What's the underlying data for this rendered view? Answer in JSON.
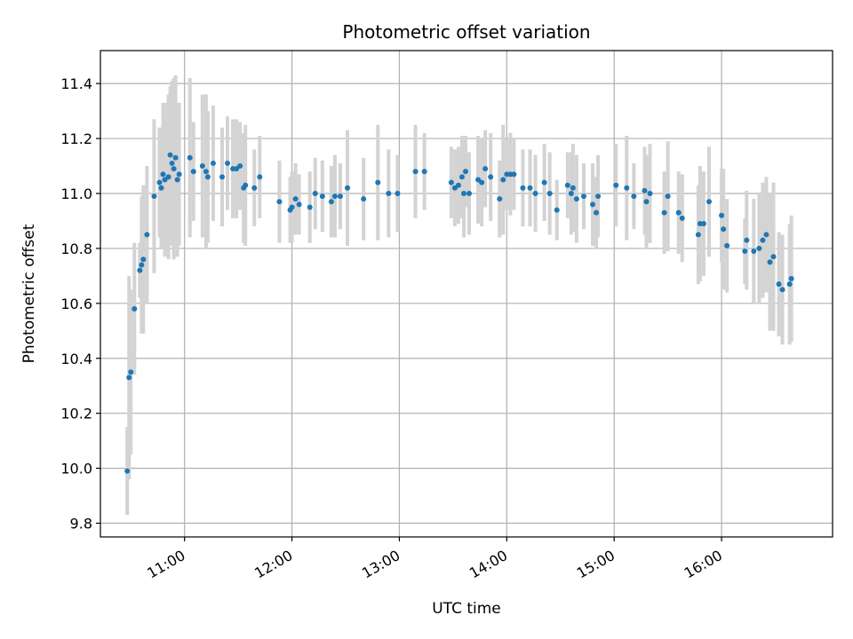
{
  "chart_data": {
    "type": "scatter",
    "title": "Photometric offset variation",
    "xlabel": "UTC time",
    "ylabel": "Photometric offset",
    "x_axis_kind": "time",
    "xlim": [
      "10:13",
      "17:02"
    ],
    "ylim": [
      9.75,
      11.52
    ],
    "x_ticks": [
      "11:00",
      "12:00",
      "13:00",
      "14:00",
      "15:00",
      "16:00"
    ],
    "y_ticks": [
      "9.8",
      "10.0",
      "10.2",
      "10.4",
      "10.6",
      "10.8",
      "11.0",
      "11.2",
      "11.4"
    ],
    "grid": true,
    "legend": "none",
    "colors": {
      "points": "#1f77b4",
      "error_bars": "#d3d3d3",
      "grid": "#b0b0b0"
    },
    "points": [
      {
        "x": "10:28",
        "y": 9.99,
        "err": 0.16
      },
      {
        "x": "10:29",
        "y": 10.33,
        "err": 0.37
      },
      {
        "x": "10:30",
        "y": 10.35,
        "err": 0.3
      },
      {
        "x": "10:32",
        "y": 10.58,
        "err": 0.24
      },
      {
        "x": "10:35",
        "y": 10.72,
        "err": 0.1
      },
      {
        "x": "10:36",
        "y": 10.74,
        "err": 0.25
      },
      {
        "x": "10:37",
        "y": 10.76,
        "err": 0.27
      },
      {
        "x": "10:39",
        "y": 10.85,
        "err": 0.25
      },
      {
        "x": "10:43",
        "y": 10.99,
        "err": 0.28
      },
      {
        "x": "10:46",
        "y": 11.04,
        "err": 0.2
      },
      {
        "x": "10:47",
        "y": 11.02,
        "err": 0.22
      },
      {
        "x": "10:48",
        "y": 11.07,
        "err": 0.26
      },
      {
        "x": "10:49",
        "y": 11.05,
        "err": 0.28
      },
      {
        "x": "10:51",
        "y": 11.06,
        "err": 0.3
      },
      {
        "x": "10:52",
        "y": 11.14,
        "err": 0.25
      },
      {
        "x": "10:53",
        "y": 11.11,
        "err": 0.3
      },
      {
        "x": "10:54",
        "y": 11.09,
        "err": 0.33
      },
      {
        "x": "10:55",
        "y": 11.13,
        "err": 0.3
      },
      {
        "x": "10:56",
        "y": 11.05,
        "err": 0.28
      },
      {
        "x": "10:57",
        "y": 11.07,
        "err": 0.26
      },
      {
        "x": "11:03",
        "y": 11.13,
        "err": 0.29
      },
      {
        "x": "11:05",
        "y": 11.08,
        "err": 0.18
      },
      {
        "x": "11:10",
        "y": 11.1,
        "err": 0.26
      },
      {
        "x": "11:12",
        "y": 11.08,
        "err": 0.28
      },
      {
        "x": "11:13",
        "y": 11.06,
        "err": 0.24
      },
      {
        "x": "11:16",
        "y": 11.11,
        "err": 0.21
      },
      {
        "x": "11:21",
        "y": 11.06,
        "err": 0.18
      },
      {
        "x": "11:24",
        "y": 11.11,
        "err": 0.17
      },
      {
        "x": "11:27",
        "y": 11.09,
        "err": 0.18
      },
      {
        "x": "11:29",
        "y": 11.09,
        "err": 0.18
      },
      {
        "x": "11:31",
        "y": 11.1,
        "err": 0.16
      },
      {
        "x": "11:33",
        "y": 11.02,
        "err": 0.2
      },
      {
        "x": "11:34",
        "y": 11.03,
        "err": 0.22
      },
      {
        "x": "11:39",
        "y": 11.02,
        "err": 0.14
      },
      {
        "x": "11:42",
        "y": 11.06,
        "err": 0.15
      },
      {
        "x": "11:53",
        "y": 10.97,
        "err": 0.15
      },
      {
        "x": "11:59",
        "y": 10.94,
        "err": 0.12
      },
      {
        "x": "12:00",
        "y": 10.95,
        "err": 0.13
      },
      {
        "x": "12:02",
        "y": 10.98,
        "err": 0.13
      },
      {
        "x": "12:04",
        "y": 10.96,
        "err": 0.11
      },
      {
        "x": "12:10",
        "y": 10.95,
        "err": 0.13
      },
      {
        "x": "12:13",
        "y": 11.0,
        "err": 0.13
      },
      {
        "x": "12:17",
        "y": 10.99,
        "err": 0.13
      },
      {
        "x": "12:22",
        "y": 10.97,
        "err": 0.13
      },
      {
        "x": "12:24",
        "y": 10.99,
        "err": 0.15
      },
      {
        "x": "12:27",
        "y": 10.99,
        "err": 0.12
      },
      {
        "x": "12:31",
        "y": 11.02,
        "err": 0.21
      },
      {
        "x": "12:40",
        "y": 10.98,
        "err": 0.15
      },
      {
        "x": "12:48",
        "y": 11.04,
        "err": 0.21
      },
      {
        "x": "12:54",
        "y": 11.0,
        "err": 0.16
      },
      {
        "x": "12:59",
        "y": 11.0,
        "err": 0.14
      },
      {
        "x": "13:09",
        "y": 11.08,
        "err": 0.17
      },
      {
        "x": "13:14",
        "y": 11.08,
        "err": 0.14
      },
      {
        "x": "13:29",
        "y": 11.04,
        "err": 0.13
      },
      {
        "x": "13:31",
        "y": 11.02,
        "err": 0.14
      },
      {
        "x": "13:33",
        "y": 11.03,
        "err": 0.14
      },
      {
        "x": "13:35",
        "y": 11.06,
        "err": 0.15
      },
      {
        "x": "13:36",
        "y": 11.0,
        "err": 0.16
      },
      {
        "x": "13:37",
        "y": 11.08,
        "err": 0.13
      },
      {
        "x": "13:39",
        "y": 11.0,
        "err": 0.15
      },
      {
        "x": "13:44",
        "y": 11.05,
        "err": 0.16
      },
      {
        "x": "13:46",
        "y": 11.04,
        "err": 0.16
      },
      {
        "x": "13:48",
        "y": 11.09,
        "err": 0.14
      },
      {
        "x": "13:51",
        "y": 11.06,
        "err": 0.16
      },
      {
        "x": "13:56",
        "y": 10.98,
        "err": 0.14
      },
      {
        "x": "13:58",
        "y": 11.05,
        "err": 0.2
      },
      {
        "x": "14:00",
        "y": 11.07,
        "err": 0.13
      },
      {
        "x": "14:02",
        "y": 11.07,
        "err": 0.15
      },
      {
        "x": "14:04",
        "y": 11.07,
        "err": 0.13
      },
      {
        "x": "14:09",
        "y": 11.02,
        "err": 0.14
      },
      {
        "x": "14:13",
        "y": 11.02,
        "err": 0.14
      },
      {
        "x": "14:16",
        "y": 11.0,
        "err": 0.14
      },
      {
        "x": "14:21",
        "y": 11.04,
        "err": 0.14
      },
      {
        "x": "14:24",
        "y": 11.0,
        "err": 0.15
      },
      {
        "x": "14:28",
        "y": 10.94,
        "err": 0.11
      },
      {
        "x": "14:34",
        "y": 11.03,
        "err": 0.12
      },
      {
        "x": "14:36",
        "y": 11.0,
        "err": 0.15
      },
      {
        "x": "14:37",
        "y": 11.02,
        "err": 0.16
      },
      {
        "x": "14:39",
        "y": 10.98,
        "err": 0.16
      },
      {
        "x": "14:43",
        "y": 10.99,
        "err": 0.12
      },
      {
        "x": "14:48",
        "y": 10.96,
        "err": 0.15
      },
      {
        "x": "14:50",
        "y": 10.93,
        "err": 0.13
      },
      {
        "x": "14:51",
        "y": 10.99,
        "err": 0.15
      },
      {
        "x": "15:01",
        "y": 11.03,
        "err": 0.15
      },
      {
        "x": "15:07",
        "y": 11.02,
        "err": 0.19
      },
      {
        "x": "15:11",
        "y": 10.99,
        "err": 0.12
      },
      {
        "x": "15:17",
        "y": 11.01,
        "err": 0.16
      },
      {
        "x": "15:18",
        "y": 10.97,
        "err": 0.17
      },
      {
        "x": "15:20",
        "y": 11.0,
        "err": 0.18
      },
      {
        "x": "15:28",
        "y": 10.93,
        "err": 0.15
      },
      {
        "x": "15:30",
        "y": 10.99,
        "err": 0.2
      },
      {
        "x": "15:36",
        "y": 10.93,
        "err": 0.15
      },
      {
        "x": "15:38",
        "y": 10.91,
        "err": 0.16
      },
      {
        "x": "15:47",
        "y": 10.85,
        "err": 0.18
      },
      {
        "x": "15:48",
        "y": 10.89,
        "err": 0.21
      },
      {
        "x": "15:50",
        "y": 10.89,
        "err": 0.19
      },
      {
        "x": "15:53",
        "y": 10.97,
        "err": 0.2
      },
      {
        "x": "16:00",
        "y": 10.92,
        "err": 0.17
      },
      {
        "x": "16:01",
        "y": 10.87,
        "err": 0.22
      },
      {
        "x": "16:03",
        "y": 10.81,
        "err": 0.17
      },
      {
        "x": "16:13",
        "y": 10.79,
        "err": 0.12
      },
      {
        "x": "16:14",
        "y": 10.83,
        "err": 0.18
      },
      {
        "x": "16:18",
        "y": 10.79,
        "err": 0.19
      },
      {
        "x": "16:21",
        "y": 10.8,
        "err": 0.2
      },
      {
        "x": "16:23",
        "y": 10.83,
        "err": 0.21
      },
      {
        "x": "16:25",
        "y": 10.85,
        "err": 0.21
      },
      {
        "x": "16:27",
        "y": 10.75,
        "err": 0.25
      },
      {
        "x": "16:29",
        "y": 10.77,
        "err": 0.27
      },
      {
        "x": "16:32",
        "y": 10.67,
        "err": 0.19
      },
      {
        "x": "16:34",
        "y": 10.65,
        "err": 0.2
      },
      {
        "x": "16:38",
        "y": 10.67,
        "err": 0.22
      },
      {
        "x": "16:39",
        "y": 10.69,
        "err": 0.23
      }
    ]
  }
}
